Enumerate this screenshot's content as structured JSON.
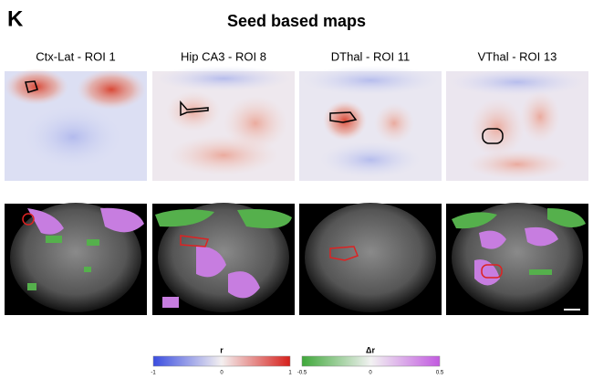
{
  "panel_label": "K",
  "title": "Seed based maps",
  "columns": [
    {
      "title": "Ctx-Lat - ROI 1"
    },
    {
      "title": "Hip CA3 - ROI 8"
    },
    {
      "title": "DThal - ROI 11"
    },
    {
      "title": "VThal - ROI 13"
    }
  ],
  "colorbars": [
    {
      "label": "r",
      "ticks": [
        "-1",
        "0",
        "1"
      ]
    },
    {
      "label": "Δr",
      "ticks": [
        "-0.5",
        "0",
        "0.5"
      ]
    }
  ]
}
